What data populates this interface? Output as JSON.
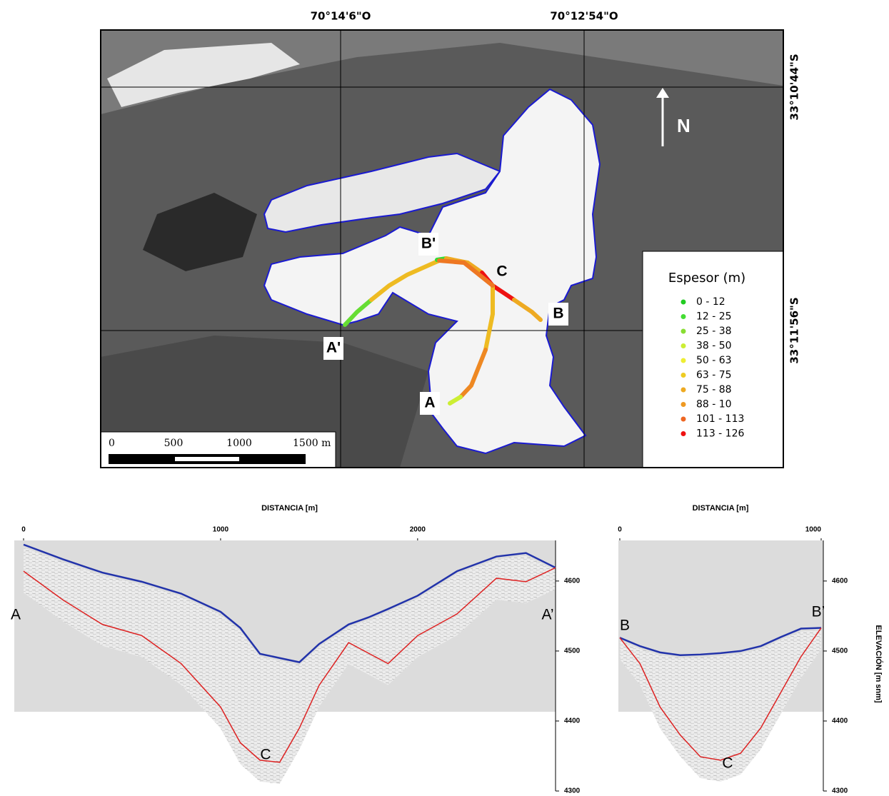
{
  "map": {
    "lon_labels": [
      "70°14'6\"O",
      "70°12'54\"O"
    ],
    "lat_labels": [
      "33°10'44\"S",
      "33°11'56\"S"
    ],
    "north": "N",
    "point_labels": [
      "A'",
      "B'",
      "C",
      "B",
      "A"
    ],
    "legend": {
      "title": "Espesor (m)",
      "items": [
        {
          "label": "0 - 12",
          "color": "#22cc22"
        },
        {
          "label": "12 - 25",
          "color": "#44dd33"
        },
        {
          "label": "25 - 38",
          "color": "#88dd33"
        },
        {
          "label": "38 - 50",
          "color": "#ccee33"
        },
        {
          "label": "50 - 63",
          "color": "#eeee33"
        },
        {
          "label": "63 - 75",
          "color": "#eecc22"
        },
        {
          "label": "75 - 88",
          "color": "#eeaa22"
        },
        {
          "label": "88 - 10",
          "color": "#ee9922"
        },
        {
          "label": "101 - 113",
          "color": "#ee6622"
        },
        {
          "label": "113 - 126",
          "color": "#ee1111"
        }
      ]
    },
    "scale_bar": [
      "0",
      "500",
      "1000",
      "1500 m"
    ]
  },
  "chart_data": [
    {
      "type": "line",
      "title": "DISTANCIA [m]",
      "x": [
        0,
        200,
        400,
        600,
        800,
        1000,
        1100,
        1200,
        1300,
        1400,
        1500,
        1650,
        1750,
        1850,
        2000,
        2200,
        2400,
        2550,
        2700
      ],
      "xlim": [
        0,
        2700
      ],
      "xticks": [
        0,
        1000,
        2000
      ],
      "ylim": [
        4300,
        4658
      ],
      "yticks": [
        4300,
        4400,
        4500,
        4600
      ],
      "series": [
        {
          "color": "#2233aa",
          "values": [
            4652,
            4631,
            4612,
            4599,
            4582,
            4556,
            4533,
            4496,
            4490,
            4484,
            4510,
            4538,
            4548,
            4560,
            4579,
            4614,
            4635,
            4640,
            4619
          ]
        },
        {
          "color": "#dd2222",
          "values": [
            4614,
            4573,
            4538,
            4522,
            4482,
            4420,
            4369,
            4344,
            4341,
            4390,
            4451,
            4512,
            4497,
            4482,
            4522,
            4553,
            4604,
            4599,
            4619
          ]
        }
      ],
      "annotations": [
        "A",
        "A’",
        "C"
      ]
    },
    {
      "type": "line",
      "title": "DISTANCIA [m]",
      "y_label": "ELEVACIÓN [m snm]",
      "x": [
        0,
        100,
        200,
        300,
        400,
        500,
        600,
        700,
        800,
        900,
        1000
      ],
      "xlim": [
        0,
        1000
      ],
      "xticks": [
        0,
        1000
      ],
      "ylim": [
        4300,
        4658
      ],
      "yticks": [
        4300,
        4400,
        4500,
        4600
      ],
      "series": [
        {
          "color": "#2233aa",
          "values": [
            4519,
            4507,
            4498,
            4494,
            4495,
            4497,
            4500,
            4507,
            4520,
            4532,
            4533
          ]
        },
        {
          "color": "#dd2222",
          "values": [
            4519,
            4482,
            4420,
            4380,
            4349,
            4344,
            4354,
            4390,
            4441,
            4492,
            4533
          ]
        }
      ],
      "annotations": [
        "B",
        "B’",
        "C"
      ]
    }
  ]
}
